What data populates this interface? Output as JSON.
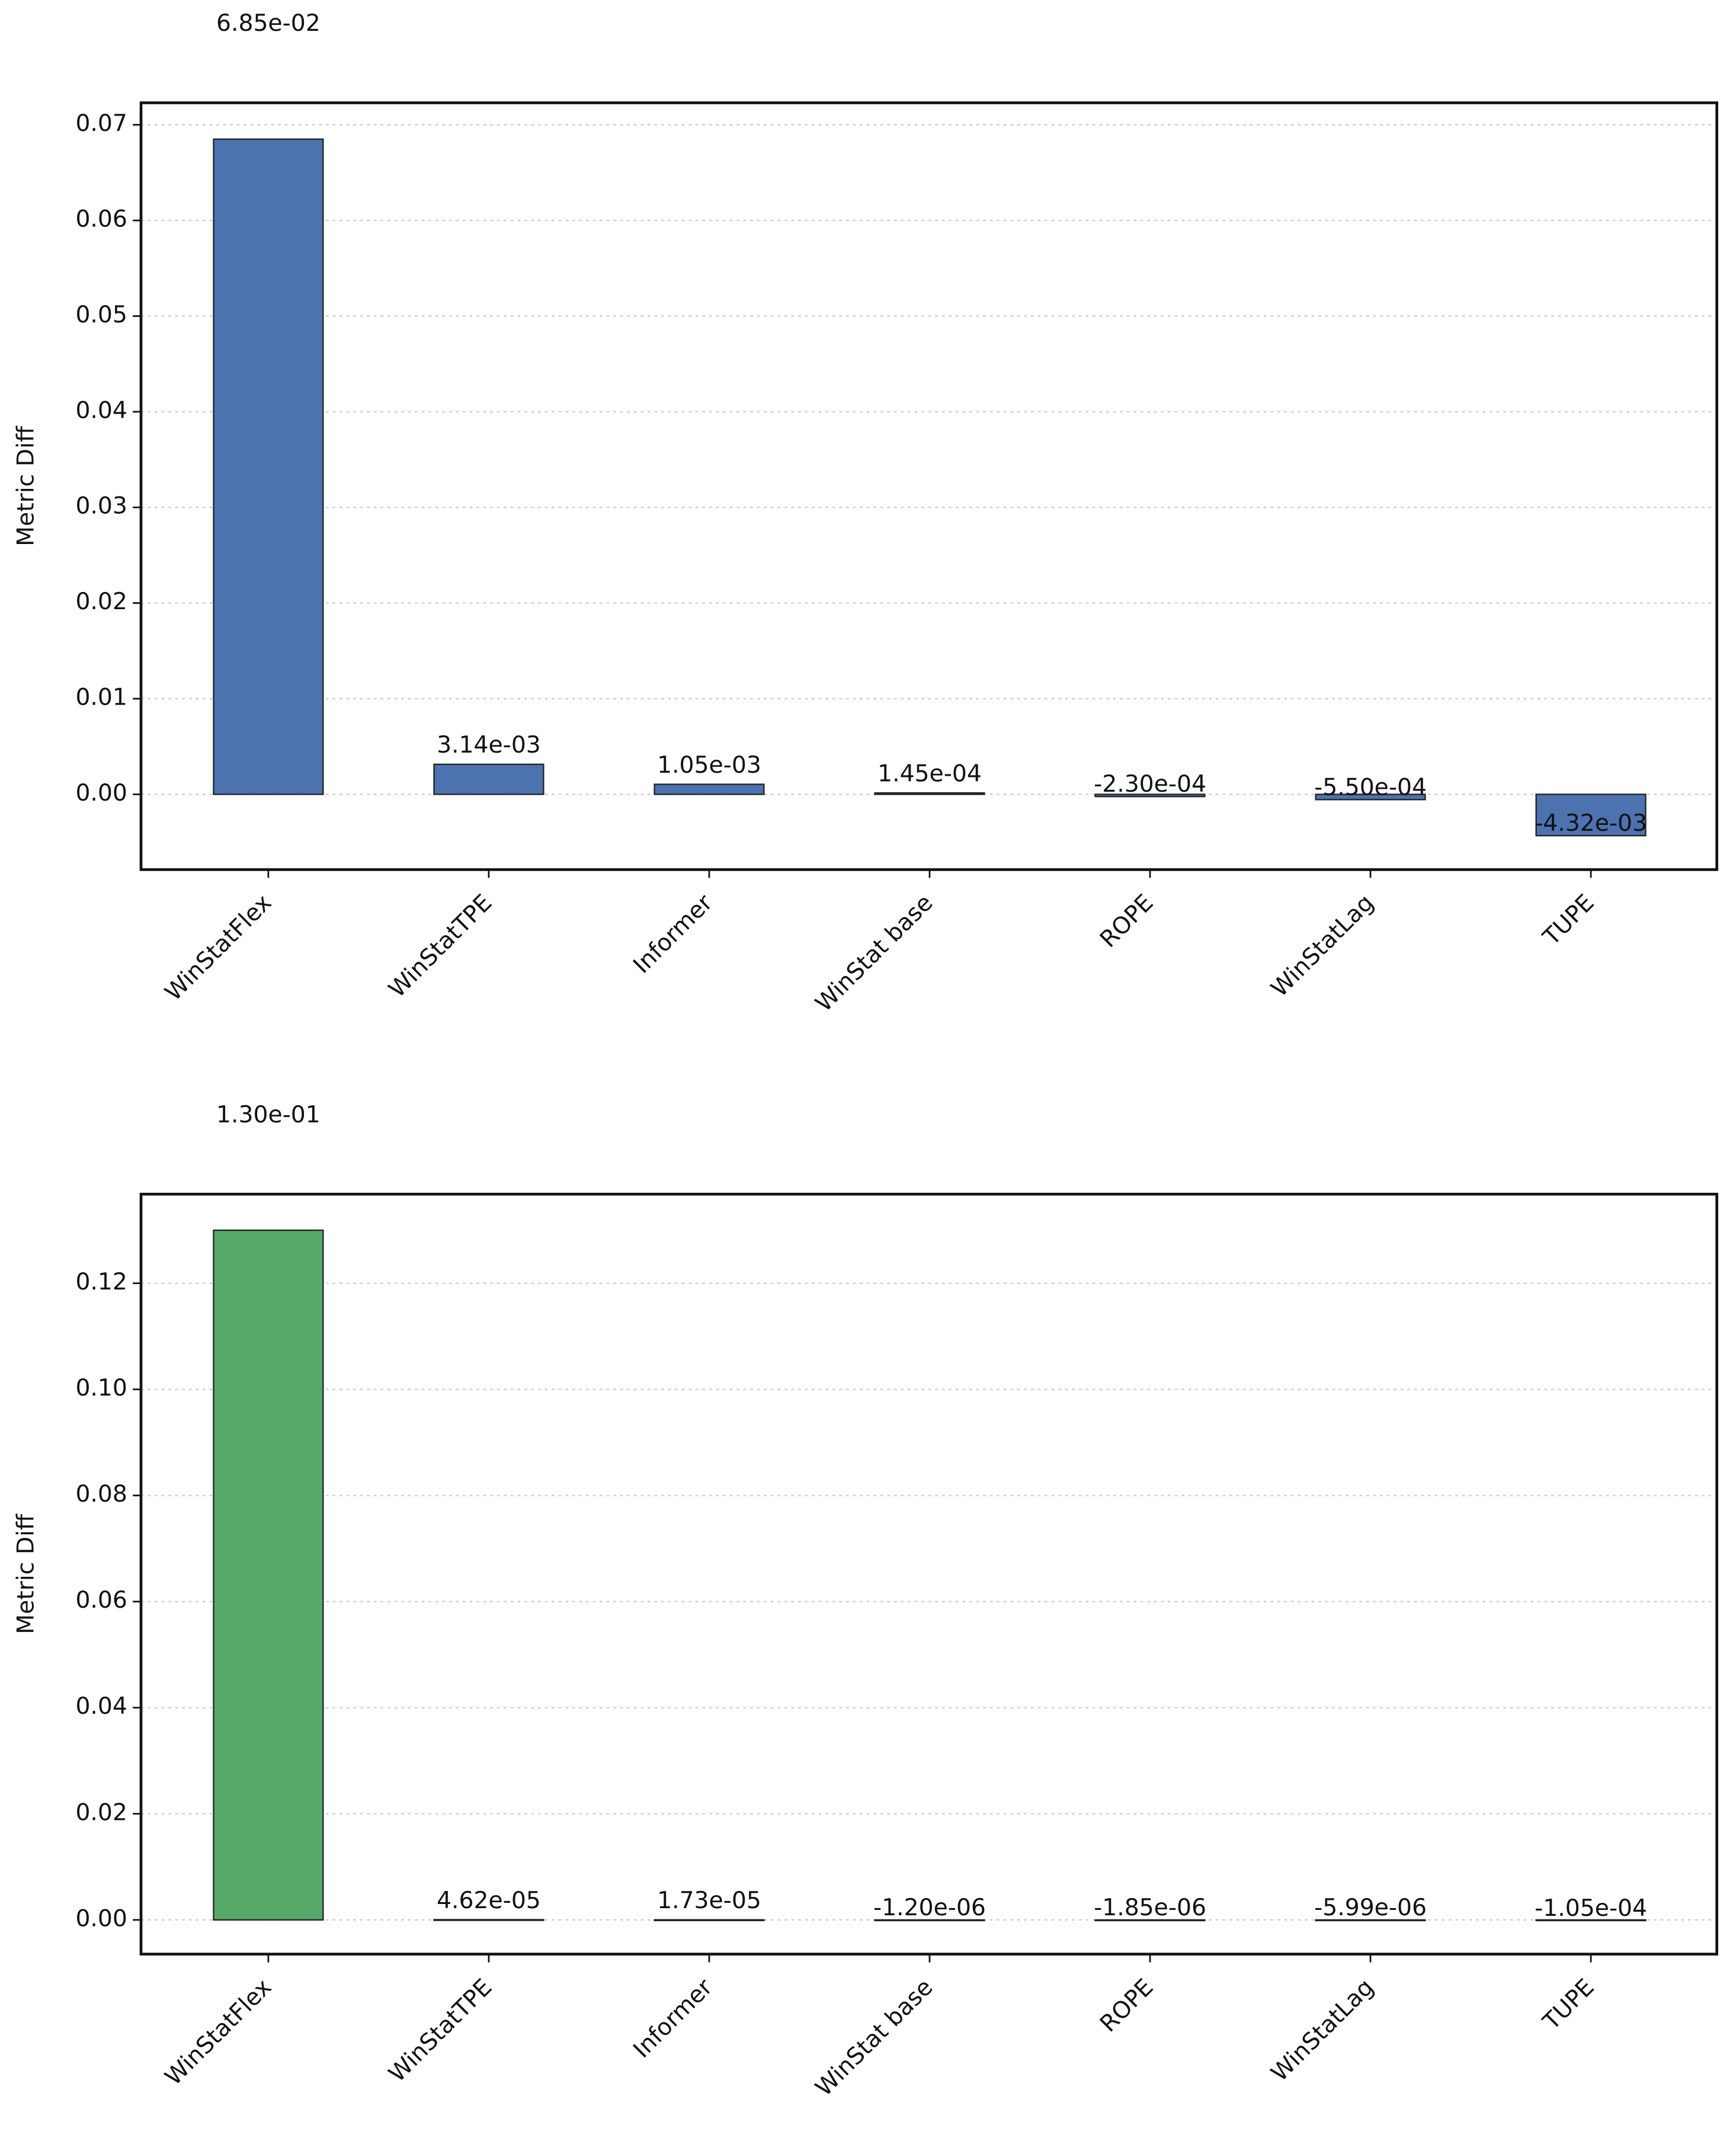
{
  "chart_data": [
    {
      "type": "bar",
      "ylabel": "Metric Diff",
      "color": "#4c72b0",
      "grid": true,
      "categories": [
        "WinStatFlex",
        "WinStatTPE",
        "Informer",
        "WinStat base",
        "ROPE",
        "WinStatLag",
        "TUPE"
      ],
      "values": [
        0.0685,
        0.00314,
        0.00105,
        0.000145,
        -0.00023,
        -0.00055,
        -0.00432
      ],
      "value_labels": [
        "6.85e-02",
        "3.14e-03",
        "1.05e-03",
        "1.45e-04",
        "-2.30e-04",
        "-5.50e-04",
        "-4.32e-03"
      ],
      "ylim": [
        -0.00787,
        0.0723
      ],
      "yticks": [
        {
          "value": 0,
          "label": "0.00"
        },
        {
          "value": 0.01,
          "label": "0.01"
        },
        {
          "value": 0.02,
          "label": "0.02"
        },
        {
          "value": 0.03,
          "label": "0.03"
        },
        {
          "value": 0.04,
          "label": "0.04"
        },
        {
          "value": 0.05,
          "label": "0.05"
        },
        {
          "value": 0.06,
          "label": "0.06"
        },
        {
          "value": 0.07,
          "label": "0.07"
        }
      ]
    },
    {
      "type": "bar",
      "ylabel": "Metric Diff",
      "color": "#55a868",
      "grid": true,
      "categories": [
        "WinStatFlex",
        "WinStatTPE",
        "Informer",
        "WinStat base",
        "ROPE",
        "WinStatLag",
        "TUPE"
      ],
      "values": [
        0.13,
        4.62e-05,
        1.73e-05,
        -1.2e-06,
        -1.85e-06,
        -5.99e-06,
        -0.000105
      ],
      "value_labels": [
        "1.30e-01",
        "4.62e-05",
        "1.73e-05",
        "-1.20e-06",
        "-1.85e-06",
        "-5.99e-06",
        "-1.05e-04"
      ],
      "ylim": [
        -0.00645,
        0.1368
      ],
      "yticks": [
        {
          "value": 0,
          "label": "0.00"
        },
        {
          "value": 0.02,
          "label": "0.02"
        },
        {
          "value": 0.04,
          "label": "0.04"
        },
        {
          "value": 0.06,
          "label": "0.06"
        },
        {
          "value": 0.08,
          "label": "0.08"
        },
        {
          "value": 0.1,
          "label": "0.10"
        },
        {
          "value": 0.12,
          "label": "0.12"
        }
      ]
    }
  ]
}
